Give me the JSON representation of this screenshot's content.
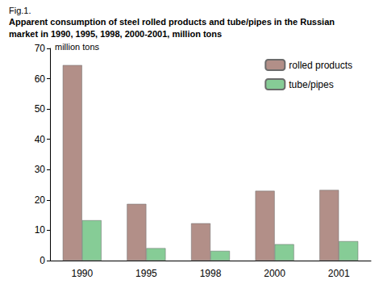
{
  "chart_data": {
    "type": "bar",
    "figure_label": "Fig.1.",
    "title": "Apparent consumption of steel rolled products and tube/pipes in the Russian\nmarket in 1990, 1995, 1998, 2000-2001, million tons",
    "y_label": "million tons",
    "categories": [
      "1990",
      "1995",
      "1998",
      "2000",
      "2001"
    ],
    "series": [
      {
        "name": "rolled products",
        "color": "#b28f88",
        "values": [
          64.5,
          18.7,
          12.3,
          23.0,
          23.3
        ]
      },
      {
        "name": "tube/pipes",
        "color": "#86cc96",
        "values": [
          13.3,
          4.1,
          3.2,
          5.4,
          6.4
        ]
      }
    ],
    "ylim": [
      0,
      70
    ],
    "yticks": [
      0,
      10,
      20,
      30,
      40,
      50,
      60,
      70
    ],
    "grid": false,
    "legend": "upper right"
  }
}
